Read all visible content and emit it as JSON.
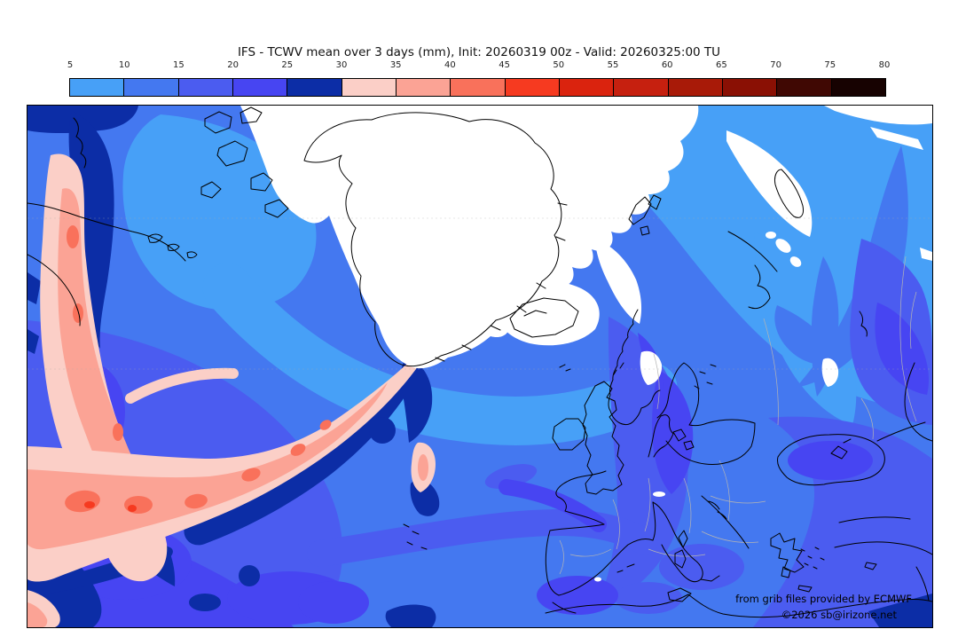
{
  "title": "IFS - TCWV mean over 3 days (mm), Init: 20260319 00z - Valid: 20260325:00 TU",
  "colorbar": {
    "unit": "mm",
    "ticks": [
      "5",
      "10",
      "15",
      "20",
      "25",
      "30",
      "35",
      "40",
      "45",
      "50",
      "55",
      "60",
      "65",
      "70",
      "75",
      "80"
    ],
    "colors": [
      "#47a0f7",
      "#4478f0",
      "#4b5cf0",
      "#4745f2",
      "#0c2da6",
      "#fbcfc7",
      "#fba395",
      "#f9715b",
      "#f63a20",
      "#da230e",
      "#c6200f",
      "#a81a08",
      "#8a1004",
      "#400803",
      "#170201"
    ]
  },
  "map": {
    "attribution_line1": "from grib files provided by ECMWF",
    "attribution_line2": "©2026 sb@irizone.net",
    "below_scale_color": "#ffffff",
    "coastline_color": "#000000",
    "country_border_color": "#b4b4b4",
    "graticule_color": "#aaaaaa"
  },
  "chart_data": {
    "type": "heatmap",
    "title": "IFS - TCWV mean over 3 days (mm), Init: 20260319 00z - Valid: 20260325:00 TU",
    "colorbar_ticks": [
      5,
      10,
      15,
      20,
      25,
      30,
      35,
      40,
      45,
      50,
      55,
      60,
      65,
      70,
      75,
      80
    ],
    "colorbar_colors": [
      "#47a0f7",
      "#4478f0",
      "#4b5cf0",
      "#4745f2",
      "#0c2da6",
      "#fbcfc7",
      "#fba395",
      "#f9715b",
      "#f63a20",
      "#da230e",
      "#c6200f",
      "#a81a08",
      "#8a1004",
      "#400803",
      "#170201"
    ],
    "legend_position": "top",
    "notes": "Filled-contour map of total column water vapour over the North Atlantic and Europe; white areas are below 5 mm"
  }
}
